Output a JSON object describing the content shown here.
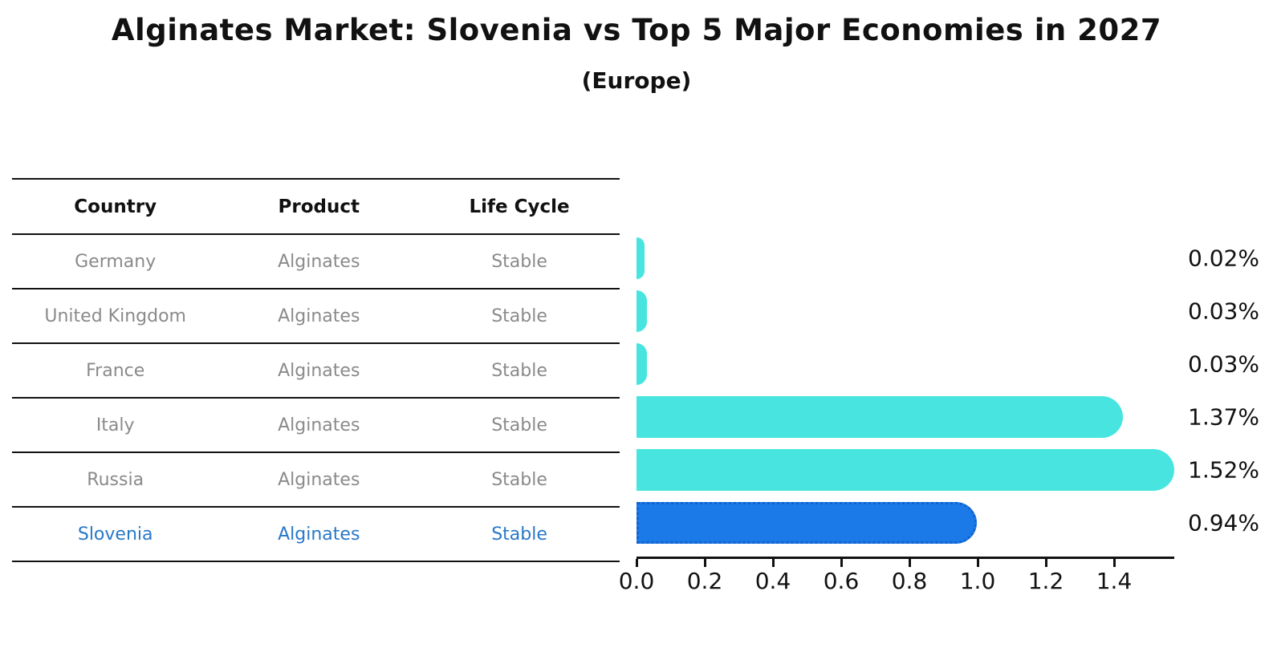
{
  "header": {
    "title": "Alginates Market: Slovenia vs Top 5 Major Economies in 2027",
    "subtitle": "(Europe)"
  },
  "table": {
    "columns": [
      "Country",
      "Product",
      "Life Cycle"
    ],
    "rows": [
      {
        "country": "Germany",
        "product": "Alginates",
        "life_cycle": "Stable"
      },
      {
        "country": "United Kingdom",
        "product": "Alginates",
        "life_cycle": "Stable"
      },
      {
        "country": "France",
        "product": "Alginates",
        "life_cycle": "Stable"
      },
      {
        "country": "Italy",
        "product": "Alginates",
        "life_cycle": "Stable"
      },
      {
        "country": "Russia",
        "product": "Alginates",
        "life_cycle": "Stable"
      },
      {
        "country": "Slovenia",
        "product": "Alginates",
        "life_cycle": "Stable"
      }
    ],
    "highlight_row": "Slovenia"
  },
  "chart_data": {
    "type": "bar",
    "orientation": "horizontal",
    "title": "Alginates Market: Slovenia vs Top 5 Major Economies in 2027",
    "subtitle": "(Europe)",
    "categories": [
      "Germany",
      "United Kingdom",
      "France",
      "Italy",
      "Russia",
      "Slovenia"
    ],
    "values": [
      0.02,
      0.03,
      0.03,
      1.37,
      1.52,
      0.94
    ],
    "value_labels": [
      "0.02%",
      "0.03%",
      "0.03%",
      "1.37%",
      "1.52%",
      "0.94%"
    ],
    "x_ticks": [
      "0.0",
      "0.2",
      "0.4",
      "0.6",
      "0.8",
      "1.0",
      "1.2",
      "1.4"
    ],
    "xlim": [
      0,
      1.57
    ],
    "grid": false,
    "legend": "none",
    "highlight_category": "Slovenia",
    "colors": {
      "bar_default": "#48e5e0",
      "bar_highlight": "#1b7ae8",
      "bar_highlight_border": "#1262cc",
      "highlight_text": "#2878c8",
      "table_text": "#8a8a8a",
      "heading_text": "#111111"
    }
  }
}
